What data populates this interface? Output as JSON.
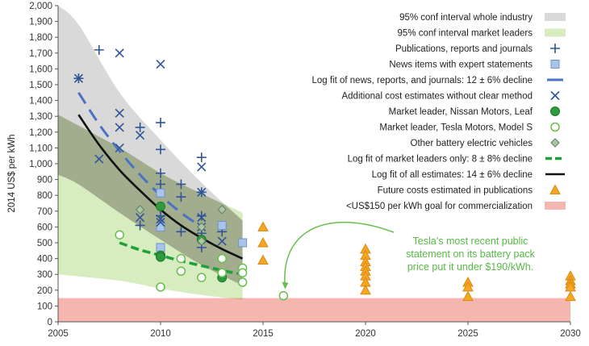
{
  "chart_data": {
    "type": "scatter",
    "ylabel": "2014 US$ per kWh",
    "xlim": [
      2005,
      2030
    ],
    "ylim": [
      0,
      2000
    ],
    "x_ticks": [
      2005,
      2010,
      2015,
      2020,
      2025,
      2030
    ],
    "y_ticks": [
      0,
      100,
      200,
      300,
      400,
      500,
      600,
      700,
      800,
      900,
      1000,
      1100,
      1200,
      1300,
      1400,
      1500,
      1600,
      1700,
      1800,
      1900,
      2000
    ],
    "y_tick_labels": [
      "0",
      "100",
      "200",
      "300",
      "400",
      "500",
      "600",
      "700",
      "800",
      "900",
      "1,000",
      "1,100",
      "1,200",
      "1,300",
      "1,400",
      "1,500",
      "1,600",
      "1,700",
      "1,800",
      "1,900",
      "2,000"
    ],
    "grid": false,
    "legend_position": "top-right",
    "colors": {
      "blue": "#2f5597",
      "light_blue": "#a9c4e8",
      "green": "#2e9a3c",
      "green_light": "#67bf4e",
      "dash_green": "#1ea03a",
      "orange": "#f5a623",
      "band_gray": "#d9d9d9",
      "band_green": "#d7ecbf",
      "band_overlap": "#a2ad8d",
      "goal_band": "#f6b6b0",
      "annotation": "#57b846"
    },
    "legend": [
      {
        "label": "95% conf interval whole industry",
        "symbol": "band-gray"
      },
      {
        "label": "95% conf interval market leaders",
        "symbol": "band-green"
      },
      {
        "label": "Publications, reports and journals",
        "symbol": "plus"
      },
      {
        "label": "News items with expert statements",
        "symbol": "square"
      },
      {
        "label": "Log fit of news, reports, and journals: 12 ± 6% decline",
        "symbol": "dash-blue"
      },
      {
        "label": "Additional cost estimates without clear method",
        "symbol": "x"
      },
      {
        "label": "Market leader, Nissan Motors, Leaf",
        "symbol": "filled-circle"
      },
      {
        "label": "Market leader, Tesla Motors, Model S",
        "symbol": "open-circle"
      },
      {
        "label": "Other battery electric vehicles",
        "symbol": "diamond"
      },
      {
        "label": "Log fit of market leaders only: 8 ± 8% decline",
        "symbol": "dash-green"
      },
      {
        "label": "Log fit of all estimates: 14 ± 6% decline",
        "symbol": "line-black"
      },
      {
        "label": "Future costs estimated in publications",
        "symbol": "triangle"
      },
      {
        "label": "<US$150 per kWh goal for commercialization",
        "symbol": "band-red"
      }
    ],
    "annotation": {
      "lines": [
        "Tesla’s most recent public",
        "statement on its battery pack",
        "price put it under $190/kWh."
      ],
      "target": [
        2016,
        165
      ]
    },
    "bands": {
      "industry": {
        "x": [
          2005,
          2006,
          2008,
          2010,
          2012,
          2014
        ],
        "upper": [
          2000,
          1880,
          1450,
          1150,
          880,
          640
        ],
        "lower": [
          930,
          870,
          690,
          520,
          360,
          230
        ]
      },
      "leaders": {
        "x": [
          2005,
          2008,
          2010,
          2012,
          2014
        ],
        "upper": [
          1310,
          1100,
          940,
          810,
          690
        ],
        "lower": [
          300,
          260,
          210,
          170,
          140
        ]
      }
    },
    "goal_band": [
      0,
      150
    ],
    "series": [
      {
        "name": "Publications, reports and journals",
        "marker": "plus",
        "points": [
          [
            2007,
            1720
          ],
          [
            2006,
            1540
          ],
          [
            2009,
            1230
          ],
          [
            2010,
            1260
          ],
          [
            2010,
            1090
          ],
          [
            2010,
            940
          ],
          [
            2010,
            870
          ],
          [
            2010,
            670
          ],
          [
            2011,
            870
          ],
          [
            2011,
            790
          ],
          [
            2011,
            570
          ],
          [
            2012,
            1040
          ],
          [
            2012,
            820
          ],
          [
            2012,
            670
          ],
          [
            2012,
            560
          ],
          [
            2012,
            470
          ],
          [
            2009,
            610
          ],
          [
            2013,
            570
          ]
        ]
      },
      {
        "name": "News items with expert statements",
        "marker": "square",
        "points": [
          [
            2010,
            815
          ],
          [
            2010,
            600
          ],
          [
            2010,
            470
          ],
          [
            2013,
            610
          ],
          [
            2014,
            500
          ]
        ]
      },
      {
        "name": "Additional cost estimates without clear method",
        "marker": "x",
        "points": [
          [
            2006,
            1540
          ],
          [
            2007,
            1030
          ],
          [
            2008,
            1700
          ],
          [
            2008,
            1320
          ],
          [
            2008,
            1230
          ],
          [
            2008,
            1100
          ],
          [
            2009,
            1180
          ],
          [
            2010,
            1630
          ],
          [
            2010,
            650
          ],
          [
            2010,
            630
          ],
          [
            2012,
            980
          ],
          [
            2012,
            820
          ],
          [
            2012,
            660
          ],
          [
            2012,
            600
          ],
          [
            2013,
            510
          ],
          [
            2009,
            660
          ]
        ]
      },
      {
        "name": "Market leader, Nissan Motors, Leaf",
        "marker": "filled-circle",
        "points": [
          [
            2010,
            730
          ],
          [
            2010,
            420
          ],
          [
            2010,
            410
          ],
          [
            2012,
            520
          ],
          [
            2013,
            280
          ]
        ]
      },
      {
        "name": "Market leader, Tesla Motors, Model S",
        "marker": "open-circle",
        "points": [
          [
            2008,
            550
          ],
          [
            2010,
            220
          ],
          [
            2011,
            400
          ],
          [
            2011,
            320
          ],
          [
            2012,
            280
          ],
          [
            2013,
            400
          ],
          [
            2013,
            310
          ],
          [
            2014,
            340
          ],
          [
            2014,
            310
          ],
          [
            2014,
            250
          ],
          [
            2016,
            165
          ]
        ]
      },
      {
        "name": "Other battery electric vehicles",
        "marker": "diamond",
        "points": [
          [
            2009,
            710
          ],
          [
            2012,
            510
          ],
          [
            2012,
            600
          ],
          [
            2013,
            710
          ]
        ]
      },
      {
        "name": "Future costs estimated in publications",
        "marker": "triangle",
        "points": [
          [
            2015,
            600
          ],
          [
            2015,
            500
          ],
          [
            2015,
            390
          ],
          [
            2020,
            460
          ],
          [
            2020,
            420
          ],
          [
            2020,
            380
          ],
          [
            2020,
            350
          ],
          [
            2020,
            320
          ],
          [
            2020,
            290
          ],
          [
            2020,
            250
          ],
          [
            2020,
            200
          ],
          [
            2025,
            250
          ],
          [
            2025,
            220
          ],
          [
            2025,
            160
          ],
          [
            2030,
            290
          ],
          [
            2030,
            260
          ],
          [
            2030,
            240
          ],
          [
            2030,
            220
          ],
          [
            2030,
            160
          ]
        ]
      }
    ],
    "fits": [
      {
        "name": "Log fit of news, reports, and journals: 12 ± 6% decline",
        "style": "dash-blue",
        "x": [
          2006,
          2007,
          2008,
          2009,
          2010,
          2011,
          2012
        ],
        "y": [
          1450,
          1250,
          1080,
          930,
          800,
          690,
          600
        ]
      },
      {
        "name": "Log fit of market leaders only: 8 ± 8% decline",
        "style": "dash-green",
        "x": [
          2008,
          2009,
          2010,
          2011,
          2012,
          2013,
          2014
        ],
        "y": [
          500,
          455,
          420,
          385,
          355,
          325,
          300
        ]
      },
      {
        "name": "Log fit of all estimates: 14 ± 6% decline",
        "style": "line-black",
        "x": [
          2006,
          2007,
          2008,
          2009,
          2010,
          2011,
          2012,
          2013,
          2014
        ],
        "y": [
          1310,
          1120,
          960,
          830,
          710,
          610,
          530,
          460,
          400
        ]
      }
    ]
  }
}
